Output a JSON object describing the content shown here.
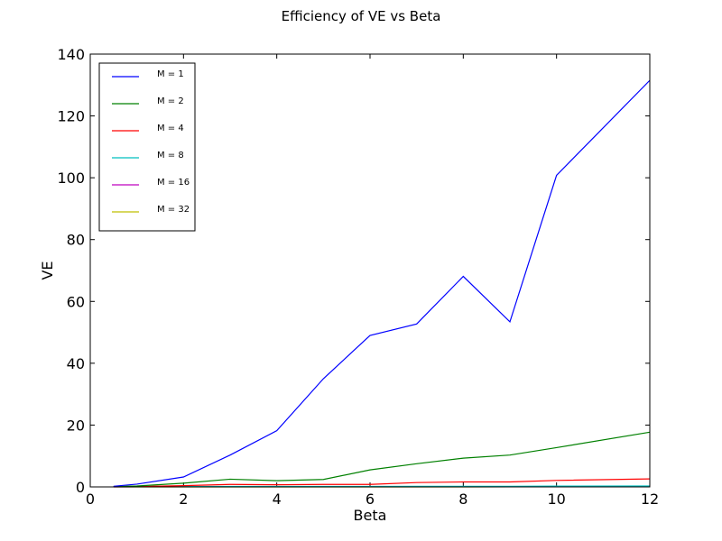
{
  "chart_data": {
    "type": "line",
    "title": "Efficiency of VE vs Beta",
    "xlabel": "Beta",
    "ylabel": "VE",
    "xlim": [
      0,
      12
    ],
    "ylim": [
      0,
      140
    ],
    "xticks": [
      0,
      2,
      4,
      6,
      8,
      10,
      12
    ],
    "yticks": [
      0,
      20,
      40,
      60,
      80,
      100,
      120,
      140
    ],
    "grid": false,
    "legend_position": "top-left",
    "series": [
      {
        "name": "M = 1",
        "color": "#0000ff",
        "x": [
          0.5,
          1,
          2,
          3,
          4,
          5,
          6,
          7,
          8,
          9,
          10,
          12
        ],
        "y": [
          0.2,
          0.9,
          3.2,
          10.3,
          18.2,
          35.0,
          49.0,
          52.7,
          68.1,
          53.4,
          100.8,
          131.5
        ]
      },
      {
        "name": "M = 2",
        "color": "#008000",
        "x": [
          0.5,
          1,
          2,
          3,
          4,
          5,
          6,
          7,
          8,
          9,
          10,
          12
        ],
        "y": [
          0.1,
          0.3,
          1.2,
          2.5,
          2.0,
          2.4,
          5.5,
          7.5,
          9.3,
          10.3,
          12.7,
          17.7
        ]
      },
      {
        "name": "M = 4",
        "color": "#ff0000",
        "x": [
          0.5,
          1,
          2,
          3,
          4,
          5,
          6,
          7,
          8,
          9,
          10,
          12
        ],
        "y": [
          0.05,
          0.1,
          0.4,
          0.8,
          0.7,
          0.8,
          0.8,
          1.4,
          1.6,
          1.6,
          2.1,
          2.6
        ]
      },
      {
        "name": "M = 8",
        "color": "#00bfbf",
        "x": [
          0.5,
          1,
          2,
          3,
          4,
          5,
          6,
          7,
          8,
          9,
          10,
          12
        ],
        "y": [
          0.02,
          0.05,
          0.1,
          0.15,
          0.15,
          0.15,
          0.15,
          0.2,
          0.2,
          0.2,
          0.25,
          0.3
        ]
      },
      {
        "name": "M = 16",
        "color": "#bf00bf",
        "x": [
          0.5,
          1,
          2,
          3,
          4,
          5,
          6,
          7,
          8,
          9,
          10,
          12
        ],
        "y": [
          0.01,
          0.02,
          0.03,
          0.04,
          0.04,
          0.04,
          0.05,
          0.05,
          0.05,
          0.05,
          0.06,
          0.07
        ]
      },
      {
        "name": "M = 32",
        "color": "#bfbf00",
        "x": [
          0.5,
          1,
          2,
          3,
          4,
          5,
          6,
          7,
          8,
          9,
          10,
          12
        ],
        "y": [
          0.0,
          0.01,
          0.01,
          0.01,
          0.01,
          0.01,
          0.01,
          0.01,
          0.01,
          0.02,
          0.02,
          0.02
        ]
      }
    ]
  }
}
